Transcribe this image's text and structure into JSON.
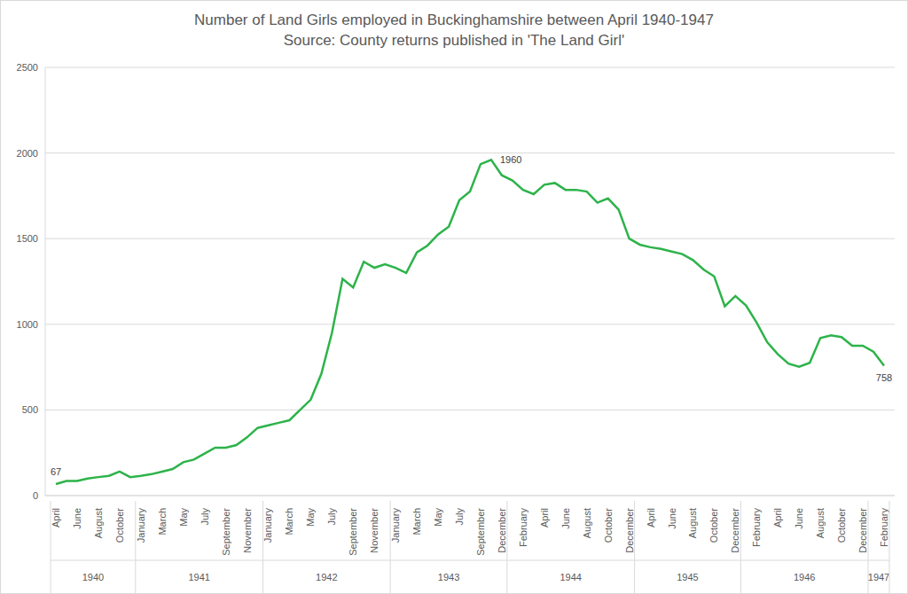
{
  "chart_data": {
    "type": "line",
    "title": "Number of Land Girls employed in Buckinghamshire between April 1940-1947",
    "subtitle": "Source: County returns published in 'The Land Girl'",
    "categories": [
      "April",
      null,
      "June",
      null,
      "August",
      null,
      "October",
      null,
      "January",
      null,
      "March",
      null,
      "May",
      null,
      "July",
      null,
      "September",
      null,
      "November",
      null,
      "January",
      null,
      "March",
      null,
      "May",
      null,
      "July",
      null,
      "September",
      null,
      "November",
      null,
      "January",
      null,
      "March",
      null,
      "May",
      null,
      "July",
      null,
      "September",
      null,
      "December",
      null,
      "February",
      null,
      "April",
      null,
      "June",
      null,
      "August",
      null,
      "October",
      null,
      "December",
      null,
      "April",
      null,
      "June",
      null,
      "August",
      null,
      "October",
      null,
      "December",
      null,
      "February",
      null,
      "April",
      null,
      "June",
      null,
      "August",
      null,
      "October",
      null,
      "December",
      null,
      "February"
    ],
    "category_groups": [
      "1940",
      "1940",
      "1940",
      "1940",
      "1940",
      "1940",
      "1940",
      "1940",
      "1941",
      "1941",
      "1941",
      "1941",
      "1941",
      "1941",
      "1941",
      "1941",
      "1941",
      "1941",
      "1941",
      "1941",
      "1942",
      "1942",
      "1942",
      "1942",
      "1942",
      "1942",
      "1942",
      "1942",
      "1942",
      "1942",
      "1942",
      "1942",
      "1943",
      "1943",
      "1943",
      "1943",
      "1943",
      "1943",
      "1943",
      "1943",
      "1943",
      "1943",
      "1943",
      "1944",
      "1944",
      "1944",
      "1944",
      "1944",
      "1944",
      "1944",
      "1944",
      "1944",
      "1944",
      "1944",
      "1944",
      "1945",
      "1945",
      "1945",
      "1945",
      "1945",
      "1945",
      "1945",
      "1945",
      "1945",
      "1945",
      "1946",
      "1946",
      "1946",
      "1946",
      "1946",
      "1946",
      "1946",
      "1946",
      "1946",
      "1946",
      "1946",
      "1946",
      "1947",
      "1947"
    ],
    "values": [
      67,
      85,
      85,
      100,
      108,
      115,
      140,
      108,
      115,
      125,
      140,
      155,
      195,
      210,
      245,
      280,
      280,
      295,
      340,
      395,
      410,
      425,
      440,
      500,
      560,
      710,
      950,
      1265,
      1215,
      1365,
      1330,
      1350,
      1330,
      1300,
      1420,
      1460,
      1525,
      1570,
      1725,
      1775,
      1935,
      1960,
      1870,
      1840,
      1785,
      1760,
      1815,
      1825,
      1785,
      1785,
      1775,
      1710,
      1735,
      1670,
      1500,
      1465,
      1450,
      1440,
      1425,
      1410,
      1375,
      1320,
      1280,
      1105,
      1165,
      1110,
      1010,
      895,
      825,
      770,
      752,
      775,
      920,
      935,
      925,
      875,
      875,
      840,
      758
    ],
    "annotations": [
      {
        "index": 0,
        "label": "67"
      },
      {
        "index": 41,
        "label": "1960"
      },
      {
        "index": 78,
        "label": "758"
      }
    ],
    "color": "#2db34a",
    "ylim": [
      0,
      2500
    ],
    "yticks": [
      0,
      500,
      1000,
      1500,
      2000,
      2500
    ],
    "grid": true
  }
}
